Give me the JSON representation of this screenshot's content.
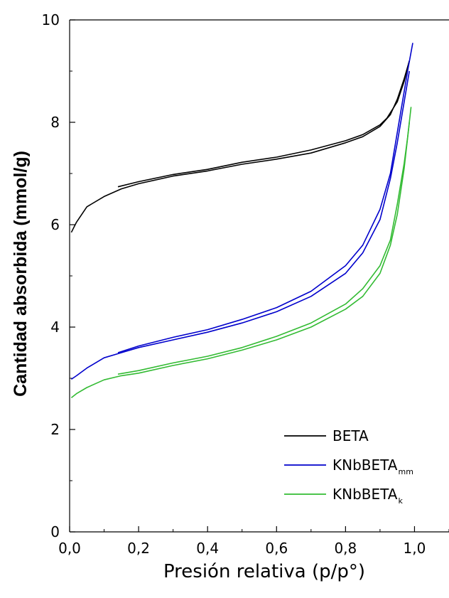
{
  "chart_data": {
    "type": "line",
    "xlabel": "Presión relativa (p/p°)",
    "ylabel": "Cantidad absorbida (mmol/g)",
    "xlim": [
      0,
      1.1
    ],
    "ylim": [
      0,
      10
    ],
    "x_ticks": [
      "0,0",
      "0,2",
      "0,4",
      "0,6",
      "0,8",
      "1,0"
    ],
    "y_ticks": [
      "0",
      "2",
      "4",
      "6",
      "8",
      "10"
    ],
    "x_tick_values": [
      0,
      0.2,
      0.4,
      0.6,
      0.8,
      1.0
    ],
    "y_tick_values": [
      0,
      2,
      4,
      6,
      8,
      10
    ],
    "grid": false,
    "legend_position": "bottom-right",
    "series": [
      {
        "name": "BETA",
        "name_sub": "",
        "color": "#000000",
        "adsorption": {
          "x": [
            0.005,
            0.02,
            0.05,
            0.1,
            0.15,
            0.2,
            0.3,
            0.4,
            0.5,
            0.6,
            0.7,
            0.8,
            0.85,
            0.9,
            0.93,
            0.95,
            0.97,
            0.985
          ],
          "y": [
            5.85,
            6.05,
            6.35,
            6.55,
            6.7,
            6.8,
            6.95,
            7.05,
            7.18,
            7.28,
            7.4,
            7.6,
            7.72,
            7.92,
            8.15,
            8.45,
            8.85,
            9.2
          ]
        },
        "desorption": {
          "x": [
            0.985,
            0.97,
            0.95,
            0.92,
            0.9,
            0.85,
            0.8,
            0.7,
            0.6,
            0.5,
            0.4,
            0.3,
            0.2,
            0.14
          ],
          "y": [
            9.2,
            8.8,
            8.4,
            8.08,
            7.95,
            7.76,
            7.64,
            7.46,
            7.32,
            7.22,
            7.08,
            6.98,
            6.84,
            6.74
          ]
        }
      },
      {
        "name": "KNbBETA",
        "name_sub": "mm",
        "color": "#0000cc",
        "adsorption": {
          "x": [
            0.005,
            0.02,
            0.05,
            0.1,
            0.15,
            0.2,
            0.3,
            0.4,
            0.5,
            0.6,
            0.7,
            0.8,
            0.85,
            0.9,
            0.93,
            0.95,
            0.97,
            0.985
          ],
          "y": [
            2.98,
            3.05,
            3.2,
            3.4,
            3.5,
            3.6,
            3.75,
            3.9,
            4.08,
            4.3,
            4.6,
            5.05,
            5.45,
            6.1,
            6.9,
            7.6,
            8.4,
            9.0
          ]
        },
        "desorption": {
          "x": [
            0.995,
            0.98,
            0.97,
            0.95,
            0.93,
            0.9,
            0.85,
            0.8,
            0.7,
            0.6,
            0.5,
            0.4,
            0.3,
            0.2,
            0.14
          ],
          "y": [
            9.55,
            9.0,
            8.6,
            7.8,
            7.0,
            6.3,
            5.6,
            5.2,
            4.7,
            4.38,
            4.15,
            3.95,
            3.8,
            3.63,
            3.5
          ]
        }
      },
      {
        "name": "KNbBETA",
        "name_sub": "k",
        "color": "#33bb33",
        "adsorption": {
          "x": [
            0.005,
            0.02,
            0.05,
            0.1,
            0.15,
            0.2,
            0.3,
            0.4,
            0.5,
            0.6,
            0.7,
            0.8,
            0.85,
            0.9,
            0.93,
            0.95,
            0.97,
            0.985
          ],
          "y": [
            2.62,
            2.7,
            2.82,
            2.97,
            3.05,
            3.1,
            3.25,
            3.38,
            3.55,
            3.75,
            4.0,
            4.35,
            4.6,
            5.05,
            5.6,
            6.2,
            7.1,
            8.0
          ]
        },
        "desorption": {
          "x": [
            0.99,
            0.98,
            0.97,
            0.95,
            0.93,
            0.9,
            0.85,
            0.8,
            0.7,
            0.6,
            0.5,
            0.4,
            0.3,
            0.2,
            0.14
          ],
          "y": [
            8.3,
            7.7,
            7.2,
            6.4,
            5.7,
            5.2,
            4.75,
            4.45,
            4.08,
            3.82,
            3.6,
            3.43,
            3.3,
            3.15,
            3.08
          ]
        }
      }
    ]
  }
}
